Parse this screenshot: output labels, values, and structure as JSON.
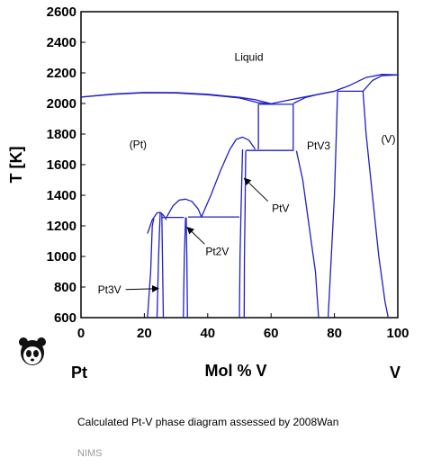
{
  "chart_data": {
    "type": "line",
    "title": "",
    "xlabel": "Mol % V",
    "ylabel": "T [K]",
    "xlim": [
      0,
      100
    ],
    "ylim": [
      600,
      2600
    ],
    "x_ticks": [
      0,
      20,
      40,
      60,
      80,
      100
    ],
    "y_ticks": [
      600,
      800,
      1000,
      1200,
      1400,
      1600,
      1800,
      2000,
      2200,
      2400,
      2600
    ],
    "grid": false,
    "line_color": "#1f1fc8",
    "x_end_labels": {
      "left": "Pt",
      "right": "V"
    },
    "region_labels": [
      {
        "text": "Liquid",
        "x": 53,
        "y": 2280
      },
      {
        "text": "(Pt)",
        "x": 18,
        "y": 1710
      },
      {
        "text": "PtV3",
        "x": 75,
        "y": 1700
      },
      {
        "text": "(V)",
        "x": 97,
        "y": 1745
      }
    ],
    "annotations": [
      {
        "text": "PtV",
        "x": 63,
        "y": 1290,
        "arrow_to": [
          51,
          1510
        ]
      },
      {
        "text": "Pt2V",
        "x": 43,
        "y": 1010,
        "arrow_to": [
          33,
          1190
        ]
      },
      {
        "text": "Pt3V",
        "x": 9,
        "y": 760,
        "arrow_to": [
          25,
          790
        ]
      }
    ],
    "curves": [
      {
        "name": "liquidus",
        "points": [
          [
            0,
            2042
          ],
          [
            10,
            2062
          ],
          [
            20,
            2072
          ],
          [
            30,
            2071
          ],
          [
            40,
            2060
          ],
          [
            50,
            2040
          ],
          [
            55,
            2025
          ],
          [
            60,
            1998
          ],
          [
            65,
            2020
          ],
          [
            70,
            2040
          ],
          [
            80,
            2080
          ],
          [
            85,
            2120
          ],
          [
            90,
            2170
          ],
          [
            95,
            2190
          ],
          [
            100,
            2187
          ]
        ]
      },
      {
        "name": "solidus",
        "points": [
          [
            0,
            2042
          ],
          [
            10,
            2060
          ],
          [
            20,
            2070
          ],
          [
            30,
            2069
          ],
          [
            40,
            2057
          ],
          [
            50,
            2036
          ],
          [
            56,
            2005
          ],
          [
            60,
            1998
          ]
        ]
      },
      {
        "name": "v-liquidus",
        "points": [
          [
            89,
            2080
          ],
          [
            92,
            2150
          ],
          [
            95,
            2182
          ],
          [
            100,
            2187
          ]
        ]
      },
      {
        "name": "pt-solvus-a",
        "points": [
          [
            21,
            600
          ],
          [
            22,
            900
          ],
          [
            22.5,
            1200
          ],
          [
            23,
            1250
          ]
        ]
      },
      {
        "name": "pt3v-dome",
        "points": [
          [
            21,
            1150
          ],
          [
            22.5,
            1240
          ],
          [
            24,
            1285
          ],
          [
            25,
            1288
          ],
          [
            26,
            1270
          ],
          [
            27,
            1240
          ]
        ]
      },
      {
        "name": "pt3v-left",
        "points": [
          [
            24,
            600
          ],
          [
            24.5,
            1000
          ],
          [
            25,
            1288
          ]
        ]
      },
      {
        "name": "pt3v-right",
        "points": [
          [
            26,
            600
          ],
          [
            25.7,
            1000
          ],
          [
            25.5,
            1280
          ]
        ]
      },
      {
        "name": "pt2v-dome",
        "points": [
          [
            27,
            1255
          ],
          [
            29,
            1330
          ],
          [
            31,
            1368
          ],
          [
            33,
            1375
          ],
          [
            35,
            1360
          ],
          [
            37,
            1310
          ],
          [
            38,
            1258
          ]
        ]
      },
      {
        "name": "pt2v-left",
        "points": [
          [
            32.3,
            600
          ],
          [
            32.6,
            1000
          ],
          [
            33,
            1255
          ]
        ]
      },
      {
        "name": "pt2v-right",
        "points": [
          [
            33.6,
            600
          ],
          [
            33.4,
            1000
          ],
          [
            33.2,
            1255
          ]
        ]
      },
      {
        "name": "ptv-dome",
        "points": [
          [
            38,
            1258
          ],
          [
            41,
            1400
          ],
          [
            44,
            1560
          ],
          [
            47,
            1700
          ],
          [
            49,
            1765
          ],
          [
            51,
            1780
          ],
          [
            53,
            1760
          ],
          [
            55,
            1700
          ]
        ]
      },
      {
        "name": "ptv-left",
        "points": [
          [
            50,
            600
          ],
          [
            50.2,
            1000
          ],
          [
            50.5,
            1300
          ],
          [
            51,
            1700
          ]
        ]
      },
      {
        "name": "ptv-right",
        "points": [
          [
            51.5,
            600
          ],
          [
            51.6,
            1000
          ],
          [
            51.8,
            1300
          ],
          [
            52,
            1690
          ]
        ]
      },
      {
        "name": "ptv3-left",
        "points": [
          [
            56,
            1700
          ],
          [
            56,
            1995
          ]
        ]
      },
      {
        "name": "ptv3-right",
        "points": [
          [
            67,
            1690
          ],
          [
            67,
            1995
          ]
        ]
      },
      {
        "name": "ptv3-inner",
        "points": [
          [
            68,
            1690
          ],
          [
            70,
            1500
          ],
          [
            72,
            1200
          ],
          [
            74,
            900
          ],
          [
            75,
            600
          ]
        ]
      },
      {
        "name": "ptv3-dome",
        "points": [
          [
            67,
            2000
          ],
          [
            71,
            2040
          ],
          [
            75,
            2060
          ],
          [
            80,
            2080
          ]
        ]
      },
      {
        "name": "ptv3-vside",
        "points": [
          [
            81,
            2080
          ],
          [
            80.6,
            1800
          ],
          [
            80,
            1400
          ],
          [
            79,
            1000
          ],
          [
            78,
            600
          ]
        ]
      },
      {
        "name": "v-solvus",
        "points": [
          [
            89,
            2080
          ],
          [
            90,
            1800
          ],
          [
            92,
            1400
          ],
          [
            94,
            1000
          ],
          [
            96,
            700
          ],
          [
            97,
            600
          ]
        ]
      }
    ],
    "horizontals": [
      {
        "y": 1255,
        "x1": 25.5,
        "x2": 32.5
      },
      {
        "y": 1258,
        "x1": 33.8,
        "x2": 50.0
      },
      {
        "y": 1995,
        "x1": 56,
        "x2": 67
      },
      {
        "y": 1693,
        "x1": 52,
        "x2": 67
      },
      {
        "y": 2080,
        "x1": 81,
        "x2": 89
      }
    ]
  },
  "caption": "Calculated Pt-V phase diagram assessed by 2008Wan",
  "credit": "NIMS",
  "logo": {
    "icon": "panda-icon"
  }
}
